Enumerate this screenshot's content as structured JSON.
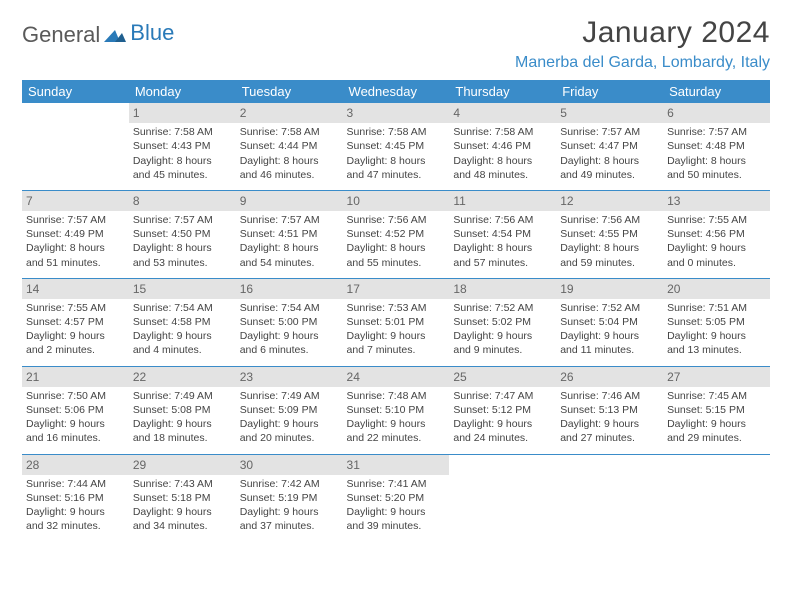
{
  "brand": {
    "part1": "General",
    "part2": "Blue"
  },
  "title": "January 2024",
  "location": "Manerba del Garda, Lombardy, Italy",
  "colors": {
    "header_bg": "#3a8cc9",
    "header_text": "#ffffff",
    "daynum_bg": "#e3e3e3",
    "text": "#444444",
    "rule": "#3a8cc9",
    "location": "#3a8cc9"
  },
  "dayHeaders": [
    "Sunday",
    "Monday",
    "Tuesday",
    "Wednesday",
    "Thursday",
    "Friday",
    "Saturday"
  ],
  "weeks": [
    [
      {
        "n": "",
        "sun": "",
        "set": "",
        "d1": "",
        "d2": ""
      },
      {
        "n": "1",
        "sun": "Sunrise: 7:58 AM",
        "set": "Sunset: 4:43 PM",
        "d1": "Daylight: 8 hours",
        "d2": "and 45 minutes."
      },
      {
        "n": "2",
        "sun": "Sunrise: 7:58 AM",
        "set": "Sunset: 4:44 PM",
        "d1": "Daylight: 8 hours",
        "d2": "and 46 minutes."
      },
      {
        "n": "3",
        "sun": "Sunrise: 7:58 AM",
        "set": "Sunset: 4:45 PM",
        "d1": "Daylight: 8 hours",
        "d2": "and 47 minutes."
      },
      {
        "n": "4",
        "sun": "Sunrise: 7:58 AM",
        "set": "Sunset: 4:46 PM",
        "d1": "Daylight: 8 hours",
        "d2": "and 48 minutes."
      },
      {
        "n": "5",
        "sun": "Sunrise: 7:57 AM",
        "set": "Sunset: 4:47 PM",
        "d1": "Daylight: 8 hours",
        "d2": "and 49 minutes."
      },
      {
        "n": "6",
        "sun": "Sunrise: 7:57 AM",
        "set": "Sunset: 4:48 PM",
        "d1": "Daylight: 8 hours",
        "d2": "and 50 minutes."
      }
    ],
    [
      {
        "n": "7",
        "sun": "Sunrise: 7:57 AM",
        "set": "Sunset: 4:49 PM",
        "d1": "Daylight: 8 hours",
        "d2": "and 51 minutes."
      },
      {
        "n": "8",
        "sun": "Sunrise: 7:57 AM",
        "set": "Sunset: 4:50 PM",
        "d1": "Daylight: 8 hours",
        "d2": "and 53 minutes."
      },
      {
        "n": "9",
        "sun": "Sunrise: 7:57 AM",
        "set": "Sunset: 4:51 PM",
        "d1": "Daylight: 8 hours",
        "d2": "and 54 minutes."
      },
      {
        "n": "10",
        "sun": "Sunrise: 7:56 AM",
        "set": "Sunset: 4:52 PM",
        "d1": "Daylight: 8 hours",
        "d2": "and 55 minutes."
      },
      {
        "n": "11",
        "sun": "Sunrise: 7:56 AM",
        "set": "Sunset: 4:54 PM",
        "d1": "Daylight: 8 hours",
        "d2": "and 57 minutes."
      },
      {
        "n": "12",
        "sun": "Sunrise: 7:56 AM",
        "set": "Sunset: 4:55 PM",
        "d1": "Daylight: 8 hours",
        "d2": "and 59 minutes."
      },
      {
        "n": "13",
        "sun": "Sunrise: 7:55 AM",
        "set": "Sunset: 4:56 PM",
        "d1": "Daylight: 9 hours",
        "d2": "and 0 minutes."
      }
    ],
    [
      {
        "n": "14",
        "sun": "Sunrise: 7:55 AM",
        "set": "Sunset: 4:57 PM",
        "d1": "Daylight: 9 hours",
        "d2": "and 2 minutes."
      },
      {
        "n": "15",
        "sun": "Sunrise: 7:54 AM",
        "set": "Sunset: 4:58 PM",
        "d1": "Daylight: 9 hours",
        "d2": "and 4 minutes."
      },
      {
        "n": "16",
        "sun": "Sunrise: 7:54 AM",
        "set": "Sunset: 5:00 PM",
        "d1": "Daylight: 9 hours",
        "d2": "and 6 minutes."
      },
      {
        "n": "17",
        "sun": "Sunrise: 7:53 AM",
        "set": "Sunset: 5:01 PM",
        "d1": "Daylight: 9 hours",
        "d2": "and 7 minutes."
      },
      {
        "n": "18",
        "sun": "Sunrise: 7:52 AM",
        "set": "Sunset: 5:02 PM",
        "d1": "Daylight: 9 hours",
        "d2": "and 9 minutes."
      },
      {
        "n": "19",
        "sun": "Sunrise: 7:52 AM",
        "set": "Sunset: 5:04 PM",
        "d1": "Daylight: 9 hours",
        "d2": "and 11 minutes."
      },
      {
        "n": "20",
        "sun": "Sunrise: 7:51 AM",
        "set": "Sunset: 5:05 PM",
        "d1": "Daylight: 9 hours",
        "d2": "and 13 minutes."
      }
    ],
    [
      {
        "n": "21",
        "sun": "Sunrise: 7:50 AM",
        "set": "Sunset: 5:06 PM",
        "d1": "Daylight: 9 hours",
        "d2": "and 16 minutes."
      },
      {
        "n": "22",
        "sun": "Sunrise: 7:49 AM",
        "set": "Sunset: 5:08 PM",
        "d1": "Daylight: 9 hours",
        "d2": "and 18 minutes."
      },
      {
        "n": "23",
        "sun": "Sunrise: 7:49 AM",
        "set": "Sunset: 5:09 PM",
        "d1": "Daylight: 9 hours",
        "d2": "and 20 minutes."
      },
      {
        "n": "24",
        "sun": "Sunrise: 7:48 AM",
        "set": "Sunset: 5:10 PM",
        "d1": "Daylight: 9 hours",
        "d2": "and 22 minutes."
      },
      {
        "n": "25",
        "sun": "Sunrise: 7:47 AM",
        "set": "Sunset: 5:12 PM",
        "d1": "Daylight: 9 hours",
        "d2": "and 24 minutes."
      },
      {
        "n": "26",
        "sun": "Sunrise: 7:46 AM",
        "set": "Sunset: 5:13 PM",
        "d1": "Daylight: 9 hours",
        "d2": "and 27 minutes."
      },
      {
        "n": "27",
        "sun": "Sunrise: 7:45 AM",
        "set": "Sunset: 5:15 PM",
        "d1": "Daylight: 9 hours",
        "d2": "and 29 minutes."
      }
    ],
    [
      {
        "n": "28",
        "sun": "Sunrise: 7:44 AM",
        "set": "Sunset: 5:16 PM",
        "d1": "Daylight: 9 hours",
        "d2": "and 32 minutes."
      },
      {
        "n": "29",
        "sun": "Sunrise: 7:43 AM",
        "set": "Sunset: 5:18 PM",
        "d1": "Daylight: 9 hours",
        "d2": "and 34 minutes."
      },
      {
        "n": "30",
        "sun": "Sunrise: 7:42 AM",
        "set": "Sunset: 5:19 PM",
        "d1": "Daylight: 9 hours",
        "d2": "and 37 minutes."
      },
      {
        "n": "31",
        "sun": "Sunrise: 7:41 AM",
        "set": "Sunset: 5:20 PM",
        "d1": "Daylight: 9 hours",
        "d2": "and 39 minutes."
      },
      {
        "n": "",
        "sun": "",
        "set": "",
        "d1": "",
        "d2": ""
      },
      {
        "n": "",
        "sun": "",
        "set": "",
        "d1": "",
        "d2": ""
      },
      {
        "n": "",
        "sun": "",
        "set": "",
        "d1": "",
        "d2": ""
      }
    ]
  ]
}
